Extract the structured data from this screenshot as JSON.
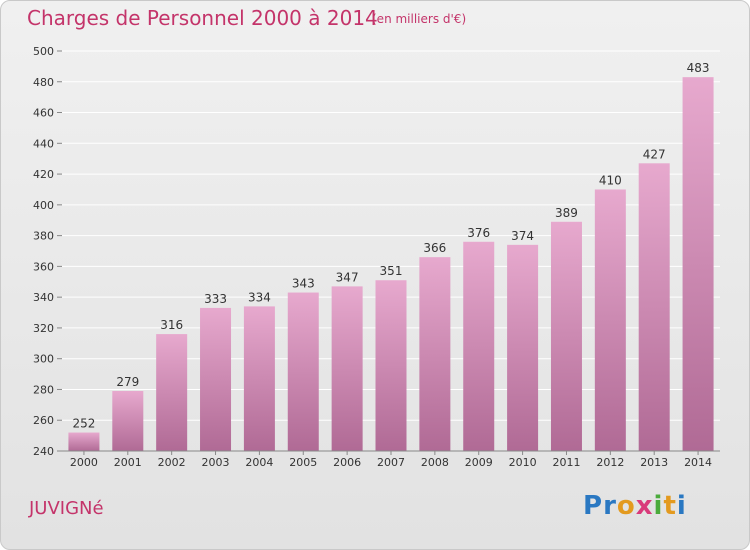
{
  "title": "Charges de Personnel 2000 à 2014",
  "subtitle": "(en milliers d'€)",
  "commune": "JUVIGNé",
  "logo": {
    "letters": [
      {
        "ch": "P",
        "color": "#2a78c2"
      },
      {
        "ch": "r",
        "color": "#2a78c2"
      },
      {
        "ch": "o",
        "color": "#e39a1f"
      },
      {
        "ch": "x",
        "color": "#d93a7a"
      },
      {
        "ch": "i",
        "color": "#4bab3c"
      },
      {
        "ch": "t",
        "color": "#e39a1f"
      },
      {
        "ch": "i",
        "color": "#2a78c2"
      }
    ]
  },
  "colors": {
    "bar_top": "#e7a9ce",
    "bar_bottom": "#b06a95",
    "grid": "#ffffff",
    "accent": "#c4346a"
  },
  "chart_data": {
    "type": "bar",
    "title": "Charges de Personnel 2000 à 2014",
    "subtitle": "(en milliers d'€)",
    "categories": [
      "2000",
      "2001",
      "2002",
      "2003",
      "2004",
      "2005",
      "2006",
      "2007",
      "2008",
      "2009",
      "2010",
      "2011",
      "2012",
      "2013",
      "2014"
    ],
    "values": [
      252,
      279,
      316,
      333,
      334,
      343,
      347,
      351,
      366,
      376,
      374,
      389,
      410,
      427,
      483
    ],
    "xlabel": "",
    "ylabel": "",
    "ylim": [
      240,
      500
    ],
    "yticks": [
      240,
      260,
      280,
      300,
      320,
      340,
      360,
      380,
      400,
      420,
      440,
      460,
      480,
      500
    ],
    "grid": true
  }
}
